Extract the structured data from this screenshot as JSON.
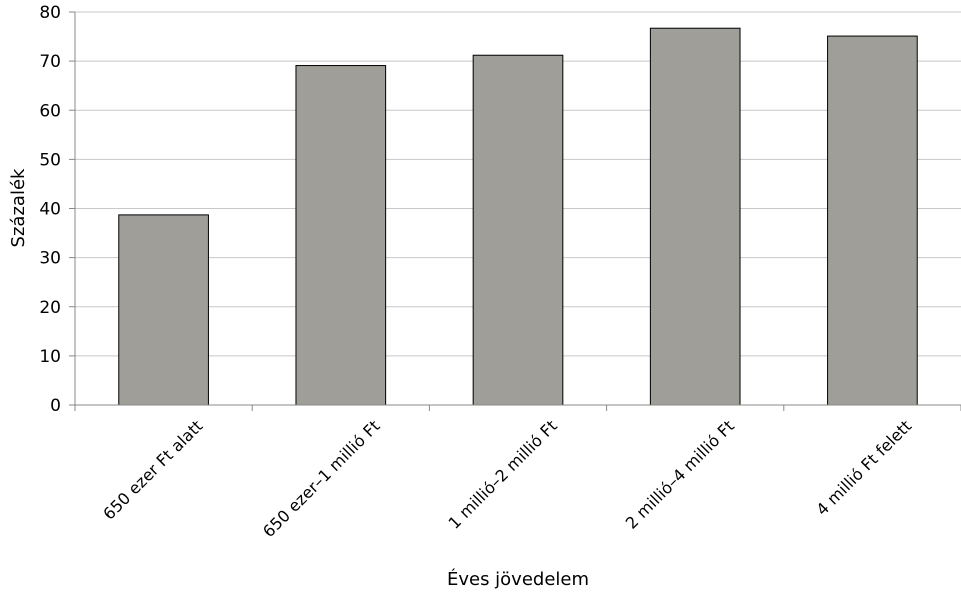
{
  "chart_data": {
    "type": "bar",
    "title": "",
    "xlabel": "Éves jövedelem",
    "ylabel": "Százalék",
    "categories": [
      "650 ezer Ft alatt",
      "650 ezer–1 millió Ft",
      "1 millió–2 millió Ft",
      "2 millió–4 millió Ft",
      "4 millió Ft felett"
    ],
    "values": [
      38.7,
      69.1,
      71.2,
      76.7,
      75.1
    ],
    "ylim": [
      0,
      80
    ],
    "yticks": [
      0,
      10,
      20,
      30,
      40,
      50,
      60,
      70,
      80
    ],
    "grid": true,
    "legend": "none",
    "bar_color": "#a09e98",
    "bar_edge_color": "#000000",
    "grid_color": "#c8c8c8"
  }
}
